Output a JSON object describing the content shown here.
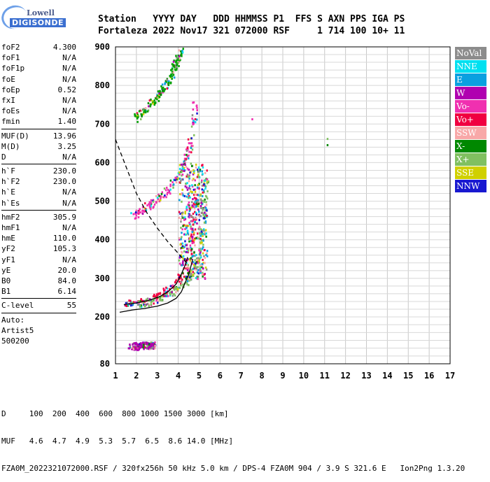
{
  "logo": {
    "line1": "Lowell",
    "line2": "DIGISONDE"
  },
  "header": {
    "line1": "Station   YYYY DAY   DDD HHMMSS P1  FFS S AXN PPS IGA PS",
    "line2": "Fortaleza 2022 Nov17 321 072000 RSF     1 714 100 10+ 11"
  },
  "params": {
    "group1": [
      {
        "name": "foF2",
        "value": "4.300"
      },
      {
        "name": "foF1",
        "value": "N/A"
      },
      {
        "name": "foF1p",
        "value": "N/A"
      },
      {
        "name": "foE",
        "value": "N/A"
      },
      {
        "name": "foEp",
        "value": "0.52"
      },
      {
        "name": "fxI",
        "value": "N/A"
      },
      {
        "name": "foEs",
        "value": "N/A"
      },
      {
        "name": "fmin",
        "value": "1.40"
      }
    ],
    "group2": [
      {
        "name": "MUF(D)",
        "value": "13.96"
      },
      {
        "name": "M(D)",
        "value": "3.25"
      },
      {
        "name": "D",
        "value": "N/A"
      }
    ],
    "group3": [
      {
        "name": "h`F",
        "value": "230.0"
      },
      {
        "name": "h`F2",
        "value": "230.0"
      },
      {
        "name": "h`E",
        "value": "N/A"
      },
      {
        "name": "h`Es",
        "value": "N/A"
      }
    ],
    "group4": [
      {
        "name": "hmF2",
        "value": "305.9"
      },
      {
        "name": "hmF1",
        "value": "N/A"
      },
      {
        "name": "hmE",
        "value": "110.0"
      },
      {
        "name": "yF2",
        "value": "105.3"
      },
      {
        "name": "yF1",
        "value": "N/A"
      },
      {
        "name": "yE",
        "value": "20.0"
      },
      {
        "name": "B0",
        "value": "84.0"
      },
      {
        "name": "B1",
        "value": "6.14"
      }
    ],
    "group5": [
      {
        "name": "C-level",
        "value": "55"
      }
    ],
    "auto": [
      "Auto:",
      "Artist5",
      "500200"
    ]
  },
  "legend": [
    {
      "label": "NoVal",
      "color": "#8c8c8c"
    },
    {
      "label": "NNE",
      "color": "#00e0f0"
    },
    {
      "label": "E",
      "color": "#0aa0e0"
    },
    {
      "label": "W",
      "color": "#b000b0"
    },
    {
      "label": "Vo-",
      "color": "#f030b0"
    },
    {
      "label": "Vo+",
      "color": "#f00040"
    },
    {
      "label": "SSW",
      "color": "#f8a8a8"
    },
    {
      "label": "X-",
      "color": "#008800"
    },
    {
      "label": "X+",
      "color": "#80c060"
    },
    {
      "label": "SSE",
      "color": "#d0d000"
    },
    {
      "label": "NNW",
      "color": "#1818d0"
    }
  ],
  "footer": {
    "line1": "D     100  200  400  600  800 1000 1500 3000 [km]",
    "line2": "MUF   4.6  4.7  4.9  5.3  5.7  6.5  8.6 14.0 [MHz]",
    "line3": "FZA0M_2022321072000.RSF / 320fx256h 50 kHz 5.0 km / DPS-4 FZA0M 904 / 3.9 S 321.6 E   Ion2Png 1.3.20"
  },
  "chart_data": {
    "type": "scatter",
    "xlim": [
      1,
      17
    ],
    "ylim": [
      80,
      900
    ],
    "x_ticks": [
      1,
      2,
      3,
      4,
      5,
      6,
      7,
      8,
      9,
      10,
      11,
      12,
      13,
      14,
      15,
      16,
      17
    ],
    "y_ticks": [
      80,
      200,
      300,
      400,
      500,
      600,
      700,
      800,
      900
    ],
    "grid": true,
    "echo_traces": [
      {
        "name": "F2 trace (O)",
        "color": "#f00040",
        "x": [
          1.5,
          2.0,
          2.5,
          3.0,
          3.4,
          3.8,
          4.1,
          4.3,
          4.5,
          4.6,
          4.7,
          4.8,
          4.9
        ],
        "y": [
          235,
          238,
          244,
          255,
          268,
          285,
          305,
          330,
          360,
          400,
          450,
          510,
          580
        ]
      },
      {
        "name": "F2 trace (X)",
        "color": "#80c060",
        "x": [
          2.0,
          2.6,
          3.2,
          3.7,
          4.2,
          4.6,
          4.9,
          5.1,
          5.2,
          5.3
        ],
        "y": [
          235,
          240,
          250,
          265,
          285,
          310,
          350,
          410,
          480,
          560
        ]
      },
      {
        "name": "2F trace",
        "color": "#f030b0",
        "x": [
          1.8,
          2.2,
          2.7,
          3.2,
          3.6,
          4.0,
          4.3,
          4.5,
          4.7,
          4.8
        ],
        "y": [
          465,
          478,
          495,
          515,
          540,
          570,
          600,
          640,
          700,
          760
        ]
      },
      {
        "name": "3F trace",
        "color": "#00a000",
        "x": [
          1.9,
          2.3,
          2.7,
          3.1,
          3.4,
          3.7,
          3.9,
          4.1
        ],
        "y": [
          715,
          735,
          755,
          780,
          805,
          835,
          865,
          895
        ]
      },
      {
        "name": "E echoes",
        "color": "#b000b0",
        "x": [
          1.7,
          2.0,
          2.3,
          2.6,
          2.8
        ],
        "y": [
          126,
          127,
          128,
          129,
          131
        ]
      },
      {
        "name": "isolated",
        "color": "#008800",
        "x": [
          11.1,
          11.1
        ],
        "y": [
          648,
          664
        ]
      },
      {
        "name": "isolated2",
        "color": "#f030b0",
        "x": [
          7.5
        ],
        "y": [
          715
        ]
      }
    ],
    "profile_curve": {
      "x": [
        1.2,
        1.8,
        2.4,
        3.0,
        3.5,
        3.9,
        4.15,
        4.3,
        4.5,
        4.7
      ],
      "y": [
        212,
        218,
        222,
        228,
        236,
        248,
        265,
        285,
        310,
        350
      ]
    },
    "fitted_trace": {
      "x": [
        1.4,
        2.0,
        2.6,
        3.1,
        3.5,
        3.9,
        4.1,
        4.3,
        4.45
      ],
      "y": [
        232,
        236,
        243,
        252,
        265,
        285,
        305,
        330,
        355
      ]
    },
    "muf_curve": {
      "x": [
        1.0,
        1.5,
        2.0,
        2.5,
        3.0,
        3.5,
        4.0,
        4.4
      ],
      "y": [
        660,
        590,
        520,
        470,
        430,
        395,
        365,
        340
      ]
    }
  }
}
